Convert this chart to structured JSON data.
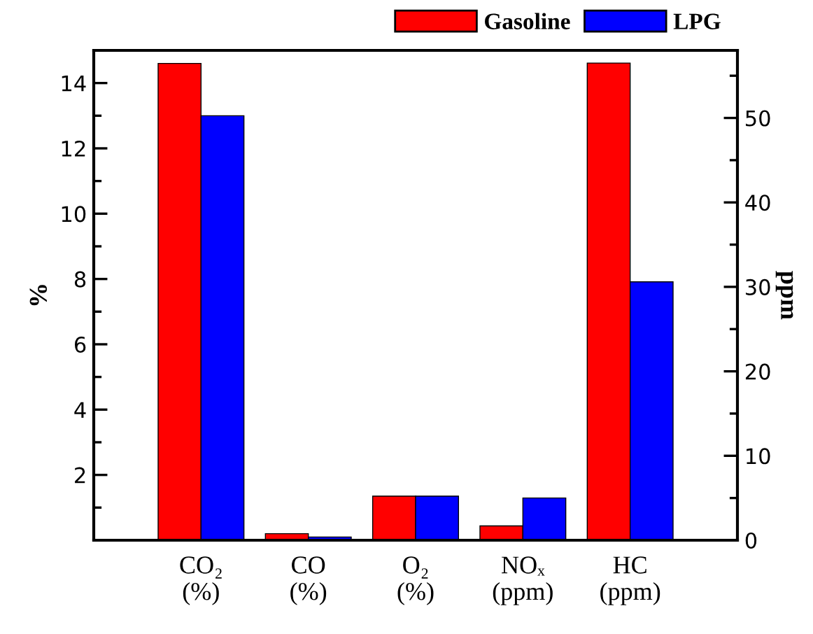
{
  "chart_data": {
    "type": "bar",
    "categories": [
      "CO₂\n(%)",
      "CO\n(%)",
      "O₂\n(%)",
      "NOₓ\n(ppm)",
      "HC\n(ppm)"
    ],
    "series": [
      {
        "name": "Gasoline",
        "color": "#ff0000",
        "values": [
          14.6,
          0.2,
          1.35,
          null,
          null
        ]
      },
      {
        "name": "LPG",
        "color": "#0000ff",
        "values": [
          13.0,
          0.1,
          1.35,
          null,
          null
        ]
      },
      {
        "color": "#ff0000",
        "axis": "y2",
        "values": [
          null,
          null,
          null,
          1.7,
          56.5
        ]
      },
      {
        "color": "#0000ff",
        "axis": "y2",
        "values": [
          null,
          null,
          null,
          5.0,
          30.6
        ]
      }
    ],
    "ylabel": "%",
    "y2label": "ppm",
    "ylim": [
      0,
      15
    ],
    "yticks": [
      {
        "value": 1,
        "label": null
      },
      2,
      {
        "value": 3,
        "label": null
      },
      4,
      {
        "value": 5,
        "label": null
      },
      6,
      {
        "value": 7,
        "label": null
      },
      8,
      {
        "value": 9,
        "label": null
      },
      10,
      {
        "value": 11,
        "label": null
      },
      12,
      {
        "value": 13,
        "label": null
      },
      14
    ],
    "y2lim": [
      0,
      58
    ],
    "y2ticks": [
      0,
      {
        "value": 5,
        "label": null
      },
      10,
      {
        "value": 15,
        "label": null
      },
      20,
      {
        "value": 25,
        "label": null
      },
      30,
      {
        "value": 35,
        "label": null
      },
      40,
      {
        "value": 45,
        "label": null
      },
      50,
      {
        "value": 55,
        "label": null
      }
    ],
    "legend": "top right",
    "grid": false
  }
}
